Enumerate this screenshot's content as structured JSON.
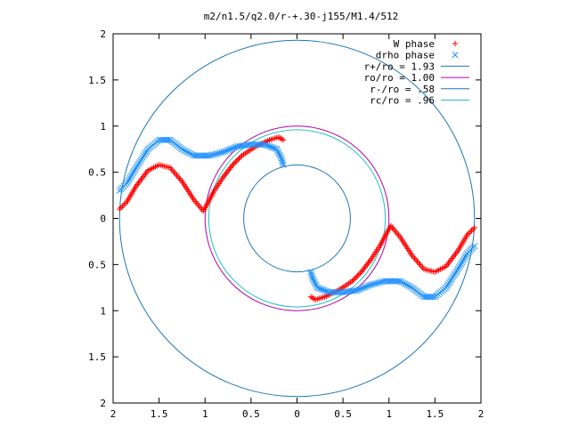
{
  "chart_data": {
    "type": "scatter",
    "title": "m2/n1.5/q2.0/r-+.30-j155/M1.4/512",
    "xlabel": "",
    "ylabel": "",
    "xlim": [
      -2,
      2
    ],
    "ylim": [
      -2,
      2
    ],
    "x_tick_labels": [
      "2",
      "1.5",
      "1",
      "0.5",
      "0",
      "0.5",
      "1",
      "1.5",
      "2"
    ],
    "y_tick_labels": [
      "2",
      "1.5",
      "1",
      "0.5",
      "0",
      "0.5",
      "1",
      "1.5",
      "2"
    ],
    "grid": false,
    "legend_position": "top-right",
    "circles": [
      {
        "name": "r+/ro = 1.93",
        "radius": 1.93,
        "color": "#1f77b4"
      },
      {
        "name": "ro/ro = 1.00",
        "radius": 1.0,
        "color": "#b000b0"
      },
      {
        "name": "r-/ro = .58",
        "radius": 0.58,
        "color": "#1f77b4"
      },
      {
        "name": "rc/ro = .96",
        "radius": 0.96,
        "color": "#20c0c0"
      }
    ],
    "series": [
      {
        "name": "W phase",
        "marker": "+",
        "color": "#ff0000",
        "points": [
          [
            -1.93,
            0.1
          ],
          [
            -1.85,
            0.18
          ],
          [
            -1.75,
            0.35
          ],
          [
            -1.62,
            0.52
          ],
          [
            -1.5,
            0.58
          ],
          [
            -1.38,
            0.55
          ],
          [
            -1.25,
            0.4
          ],
          [
            -1.12,
            0.2
          ],
          [
            -1.02,
            0.08
          ],
          [
            -0.98,
            0.15
          ],
          [
            -0.9,
            0.3
          ],
          [
            -0.8,
            0.45
          ],
          [
            -0.7,
            0.58
          ],
          [
            -0.6,
            0.68
          ],
          [
            -0.45,
            0.78
          ],
          [
            -0.3,
            0.85
          ],
          [
            -0.2,
            0.88
          ],
          [
            -0.15,
            0.85
          ],
          [
            1.93,
            -0.1
          ],
          [
            1.85,
            -0.18
          ],
          [
            1.75,
            -0.35
          ],
          [
            1.62,
            -0.52
          ],
          [
            1.5,
            -0.58
          ],
          [
            1.38,
            -0.55
          ],
          [
            1.25,
            -0.4
          ],
          [
            1.12,
            -0.2
          ],
          [
            1.02,
            -0.08
          ],
          [
            0.98,
            -0.15
          ],
          [
            0.9,
            -0.3
          ],
          [
            0.8,
            -0.45
          ],
          [
            0.7,
            -0.58
          ],
          [
            0.6,
            -0.68
          ],
          [
            0.45,
            -0.78
          ],
          [
            0.3,
            -0.85
          ],
          [
            0.2,
            -0.88
          ],
          [
            0.15,
            -0.85
          ]
        ]
      },
      {
        "name": "drho phase",
        "marker": "x",
        "color": "#1e90ff",
        "points": [
          [
            -1.93,
            0.3
          ],
          [
            -1.85,
            0.38
          ],
          [
            -1.75,
            0.55
          ],
          [
            -1.62,
            0.75
          ],
          [
            -1.5,
            0.85
          ],
          [
            -1.38,
            0.85
          ],
          [
            -1.25,
            0.75
          ],
          [
            -1.12,
            0.68
          ],
          [
            -0.95,
            0.68
          ],
          [
            -0.8,
            0.72
          ],
          [
            -0.65,
            0.78
          ],
          [
            -0.5,
            0.8
          ],
          [
            -0.35,
            0.8
          ],
          [
            -0.22,
            0.75
          ],
          [
            -0.17,
            0.65
          ],
          [
            -0.15,
            0.58
          ],
          [
            1.93,
            -0.3
          ],
          [
            1.85,
            -0.38
          ],
          [
            1.75,
            -0.55
          ],
          [
            1.62,
            -0.75
          ],
          [
            1.5,
            -0.85
          ],
          [
            1.38,
            -0.85
          ],
          [
            1.25,
            -0.75
          ],
          [
            1.12,
            -0.68
          ],
          [
            0.95,
            -0.68
          ],
          [
            0.8,
            -0.72
          ],
          [
            0.65,
            -0.78
          ],
          [
            0.5,
            -0.8
          ],
          [
            0.35,
            -0.8
          ],
          [
            0.22,
            -0.75
          ],
          [
            0.17,
            -0.65
          ],
          [
            0.15,
            -0.58
          ]
        ]
      }
    ]
  }
}
